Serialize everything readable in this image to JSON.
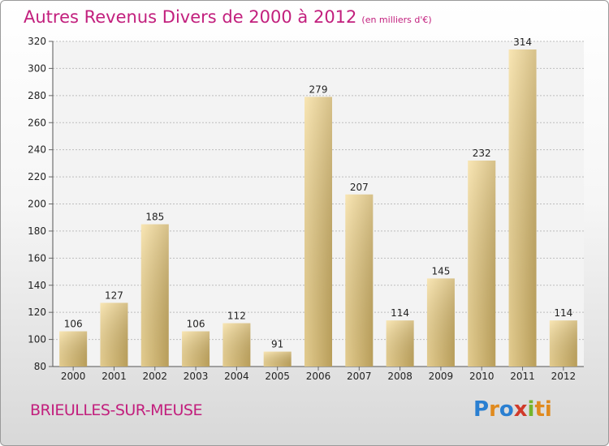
{
  "title": "Autres Revenus Divers de 2000 à 2012",
  "subtitle": "(en milliers d'€)",
  "commune": "BRIEULLES-SUR-MEUSE",
  "logo": {
    "p1": "P",
    "p2": "r",
    "p3": "o",
    "p4": "x",
    "p5": "i",
    "p6": "ti"
  },
  "colors": {
    "title": "#c21f7d",
    "bar_light": "#f6dd9b",
    "bar_dark": "#c9ac62"
  },
  "chart_data": {
    "type": "bar",
    "categories": [
      "2000",
      "2001",
      "2002",
      "2003",
      "2004",
      "2005",
      "2006",
      "2007",
      "2008",
      "2009",
      "2010",
      "2011",
      "2012"
    ],
    "values": [
      106,
      127,
      185,
      106,
      112,
      91,
      279,
      207,
      114,
      145,
      232,
      314,
      114
    ],
    "ylim": [
      80,
      320
    ],
    "yticks": [
      80,
      100,
      120,
      140,
      160,
      180,
      200,
      220,
      240,
      260,
      280,
      300,
      320
    ],
    "grid": true
  }
}
